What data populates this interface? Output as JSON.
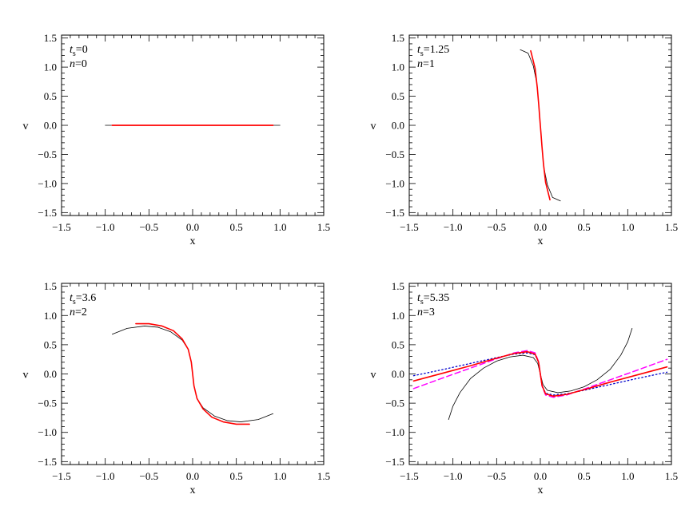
{
  "chart_data": [
    {
      "type": "line",
      "xlabel": "x",
      "ylabel": "v",
      "xlim": [
        -1.5,
        1.5
      ],
      "ylim": [
        -1.55,
        1.55
      ],
      "xticks": [
        "−1.5",
        "−1.0",
        "−0.5",
        "0.0",
        "0.5",
        "1.0",
        "1.5"
      ],
      "yticks": [
        "1.5",
        "1.0",
        "0.5",
        "0.0",
        "−0.5",
        "−1.0",
        "−1.5"
      ],
      "annotation": {
        "t_label": "t",
        "t_sub": "s",
        "t_value": "=0",
        "n_label": "n",
        "n_value": "=0"
      },
      "series": [
        {
          "color": "#000000",
          "style": "solid",
          "width": 0.8,
          "x": [
            -1.0,
            1.0
          ],
          "y": [
            0.0,
            0.0
          ]
        },
        {
          "color": "#ff0000",
          "style": "solid",
          "width": 1.8,
          "x": [
            -0.92,
            0.92
          ],
          "y": [
            0.0,
            0.0
          ]
        }
      ]
    },
    {
      "type": "line",
      "xlabel": "x",
      "ylabel": "v",
      "xlim": [
        -1.5,
        1.5
      ],
      "ylim": [
        -1.55,
        1.55
      ],
      "xticks": [
        "−1.5",
        "−1.0",
        "−0.5",
        "0.0",
        "0.5",
        "1.0",
        "1.5"
      ],
      "yticks": [
        "1.5",
        "1.0",
        "0.5",
        "0.0",
        "−0.5",
        "−1.0",
        "−1.5"
      ],
      "annotation": {
        "t_label": "t",
        "t_sub": "s",
        "t_value": "=1.25",
        "n_label": "n",
        "n_value": "=1"
      },
      "series": [
        {
          "color": "#000000",
          "style": "solid",
          "width": 0.8,
          "x": [
            -0.23,
            -0.14,
            -0.08,
            -0.04,
            -0.02,
            -0.01,
            0.0,
            0.01,
            0.02,
            0.04,
            0.08,
            0.14,
            0.23
          ],
          "y": [
            1.3,
            1.24,
            1.02,
            0.72,
            0.4,
            0.18,
            0.0,
            -0.18,
            -0.4,
            -0.72,
            -1.02,
            -1.24,
            -1.3
          ]
        },
        {
          "color": "#ff0000",
          "style": "solid",
          "width": 1.6,
          "x": [
            -0.11,
            -0.06,
            -0.035,
            -0.018,
            -0.008,
            0.0,
            0.008,
            0.018,
            0.035,
            0.06,
            0.11
          ],
          "y": [
            1.28,
            0.98,
            0.65,
            0.35,
            0.15,
            0.0,
            -0.15,
            -0.35,
            -0.65,
            -0.98,
            -1.28
          ]
        }
      ]
    },
    {
      "type": "line",
      "xlabel": "x",
      "ylabel": "v",
      "xlim": [
        -1.5,
        1.5
      ],
      "ylim": [
        -1.55,
        1.55
      ],
      "xticks": [
        "−1.5",
        "−1.0",
        "−0.5",
        "0.0",
        "0.5",
        "1.0",
        "1.5"
      ],
      "yticks": [
        "1.5",
        "1.0",
        "0.5",
        "0.0",
        "−0.5",
        "−1.0",
        "−1.5"
      ],
      "annotation": {
        "t_label": "t",
        "t_sub": "s",
        "t_value": "=3.6",
        "n_label": "n",
        "n_value": "=2"
      },
      "series": [
        {
          "color": "#000000",
          "style": "solid",
          "width": 0.8,
          "x": [
            -0.92,
            -0.75,
            -0.55,
            -0.4,
            -0.25,
            -0.12,
            -0.05,
            -0.015,
            0.0,
            0.015,
            0.05,
            0.12,
            0.25,
            0.4,
            0.55,
            0.75,
            0.92
          ],
          "y": [
            0.68,
            0.78,
            0.82,
            0.8,
            0.72,
            0.58,
            0.42,
            0.2,
            0.0,
            -0.2,
            -0.42,
            -0.58,
            -0.72,
            -0.8,
            -0.82,
            -0.78,
            -0.68
          ]
        },
        {
          "color": "#ff0000",
          "style": "solid",
          "width": 1.6,
          "x": [
            -0.65,
            -0.5,
            -0.35,
            -0.22,
            -0.12,
            -0.05,
            -0.015,
            0.0,
            0.015,
            0.05,
            0.12,
            0.22,
            0.35,
            0.5,
            0.65
          ],
          "y": [
            0.86,
            0.86,
            0.82,
            0.74,
            0.6,
            0.42,
            0.2,
            0.0,
            -0.2,
            -0.42,
            -0.6,
            -0.74,
            -0.82,
            -0.86,
            -0.86
          ]
        }
      ]
    },
    {
      "type": "line",
      "xlabel": "x",
      "ylabel": "v",
      "xlim": [
        -1.5,
        1.5
      ],
      "ylim": [
        -1.55,
        1.55
      ],
      "xticks": [
        "−1.5",
        "−1.0",
        "−0.5",
        "0.0",
        "0.5",
        "1.0",
        "1.5"
      ],
      "yticks": [
        "1.5",
        "1.0",
        "0.5",
        "0.0",
        "−0.5",
        "−1.0",
        "−1.5"
      ],
      "annotation": {
        "t_label": "t",
        "t_sub": "s",
        "t_value": "=5.35",
        "n_label": "n",
        "n_value": "=3"
      },
      "series": [
        {
          "color": "#000000",
          "style": "solid",
          "width": 0.8,
          "x": [
            -1.05,
            -1.0,
            -0.92,
            -0.8,
            -0.65,
            -0.5,
            -0.35,
            -0.2,
            -0.08,
            -0.03,
            0.0,
            0.03,
            0.08,
            0.2,
            0.35,
            0.5,
            0.65,
            0.8,
            0.92,
            1.0,
            1.05
          ],
          "y": [
            -0.78,
            -0.55,
            -0.32,
            -0.08,
            0.1,
            0.22,
            0.29,
            0.32,
            0.28,
            0.18,
            0.0,
            -0.18,
            -0.28,
            -0.32,
            -0.29,
            -0.22,
            -0.1,
            0.08,
            0.32,
            0.55,
            0.78
          ]
        },
        {
          "color": "#0000cc",
          "style": "dotted",
          "width": 1.3,
          "x": [
            -1.45,
            -1.1,
            -0.8,
            -0.5,
            -0.3,
            -0.15,
            -0.06,
            -0.02,
            0.0,
            0.02,
            0.06,
            0.15,
            0.3,
            0.5,
            0.8,
            1.1,
            1.45
          ],
          "y": [
            -0.03,
            0.08,
            0.18,
            0.28,
            0.34,
            0.36,
            0.33,
            0.2,
            0.0,
            -0.2,
            -0.33,
            -0.36,
            -0.34,
            -0.28,
            -0.18,
            -0.08,
            0.03
          ]
        },
        {
          "color": "#ff00ff",
          "style": "dashed",
          "width": 1.5,
          "x": [
            -1.45,
            -1.1,
            -0.8,
            -0.5,
            -0.3,
            -0.15,
            -0.06,
            -0.02,
            0.0,
            0.02,
            0.06,
            0.15,
            0.3,
            0.5,
            0.8,
            1.1,
            1.45
          ],
          "y": [
            -0.25,
            -0.06,
            0.1,
            0.26,
            0.36,
            0.4,
            0.36,
            0.21,
            0.0,
            -0.21,
            -0.36,
            -0.4,
            -0.36,
            -0.26,
            -0.1,
            0.06,
            0.25
          ]
        },
        {
          "color": "#ff0000",
          "style": "solid",
          "width": 1.6,
          "x": [
            -1.45,
            -1.1,
            -0.8,
            -0.5,
            -0.3,
            -0.15,
            -0.06,
            -0.02,
            0.0,
            0.02,
            0.06,
            0.15,
            0.3,
            0.5,
            0.8,
            1.1,
            1.45
          ],
          "y": [
            -0.12,
            0.02,
            0.14,
            0.27,
            0.35,
            0.38,
            0.34,
            0.2,
            0.0,
            -0.2,
            -0.34,
            -0.38,
            -0.35,
            -0.27,
            -0.14,
            -0.02,
            0.12
          ]
        }
      ]
    }
  ]
}
